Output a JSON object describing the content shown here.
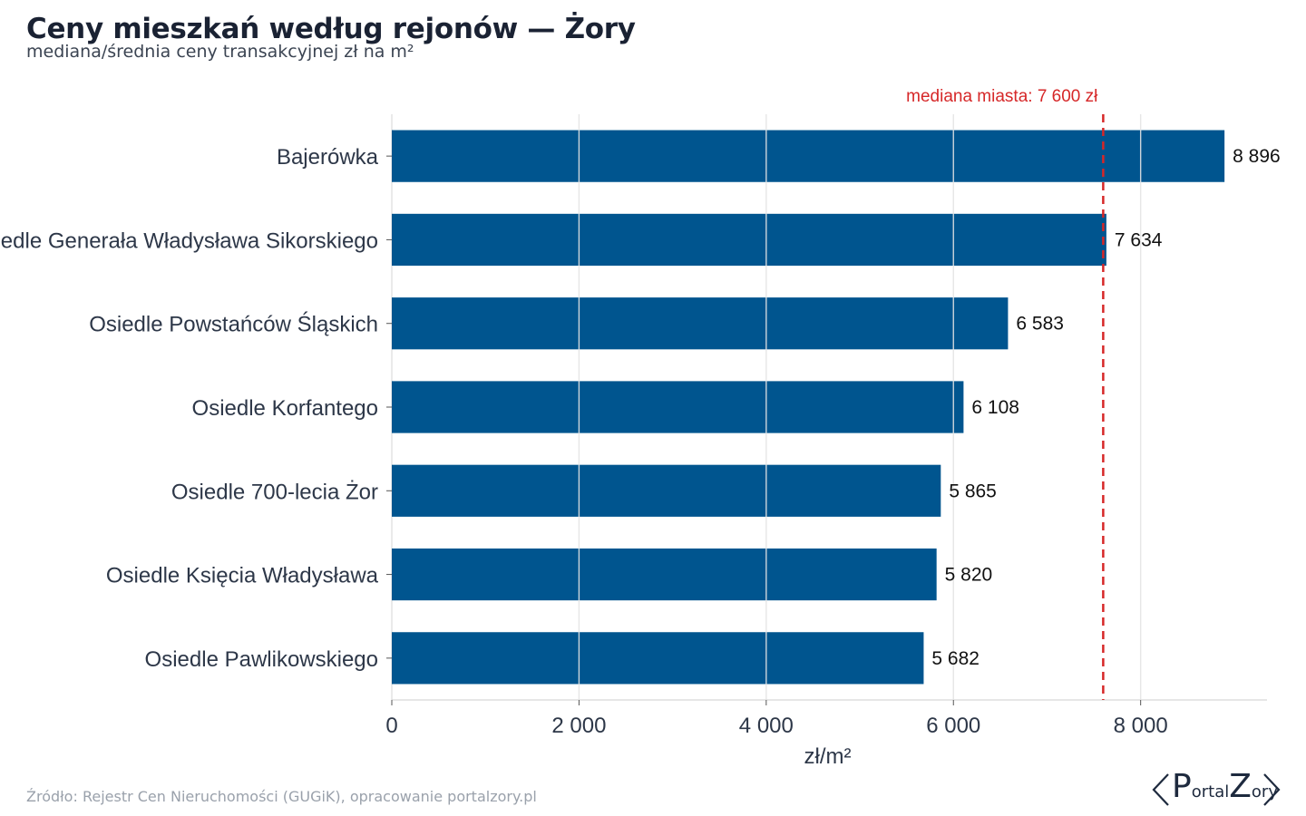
{
  "title": "Ceny mieszkań według rejonów — Żory",
  "subtitle": "mediana/średnia ceny transakcyjnej zł na m²",
  "source": "Źródło: Rejestr Cen Nieruchomości (GUGiK), opracowanie portalzory.pl",
  "logo": {
    "part1_big": "P",
    "part1_small": "ortal",
    "part2_big": "Z",
    "part2_small": "ory"
  },
  "colors": {
    "bar": "#00558f",
    "reference_line": "#d62728",
    "grid": "#e3e3e3",
    "axis_text": "#2d3748"
  },
  "chart_data": {
    "type": "bar",
    "orientation": "horizontal",
    "categories": [
      "Bajerówka",
      "Osiedle Generała Władysława Sikorskiego",
      "Osiedle Powstańców Śląskich",
      "Osiedle Korfantego",
      "Osiedle 700-lecia Żor",
      "Osiedle Księcia Władysława",
      "Osiedle Pawlikowskiego"
    ],
    "values": [
      8896,
      7634,
      6583,
      6108,
      5865,
      5820,
      5682
    ],
    "value_labels": [
      "8 896",
      "7 634",
      "6 583",
      "6 108",
      "5 865",
      "5 820",
      "5 682"
    ],
    "xlabel": "zł/m²",
    "xlim": [
      0,
      9350
    ],
    "xticks": [
      0,
      2000,
      4000,
      6000,
      8000
    ],
    "xtick_labels": [
      "0",
      "2 000",
      "4 000",
      "6 000",
      "8 000"
    ],
    "grid": true,
    "reference_line": {
      "value": 7600,
      "label": "mediana miasta: 7 600 zł"
    }
  }
}
